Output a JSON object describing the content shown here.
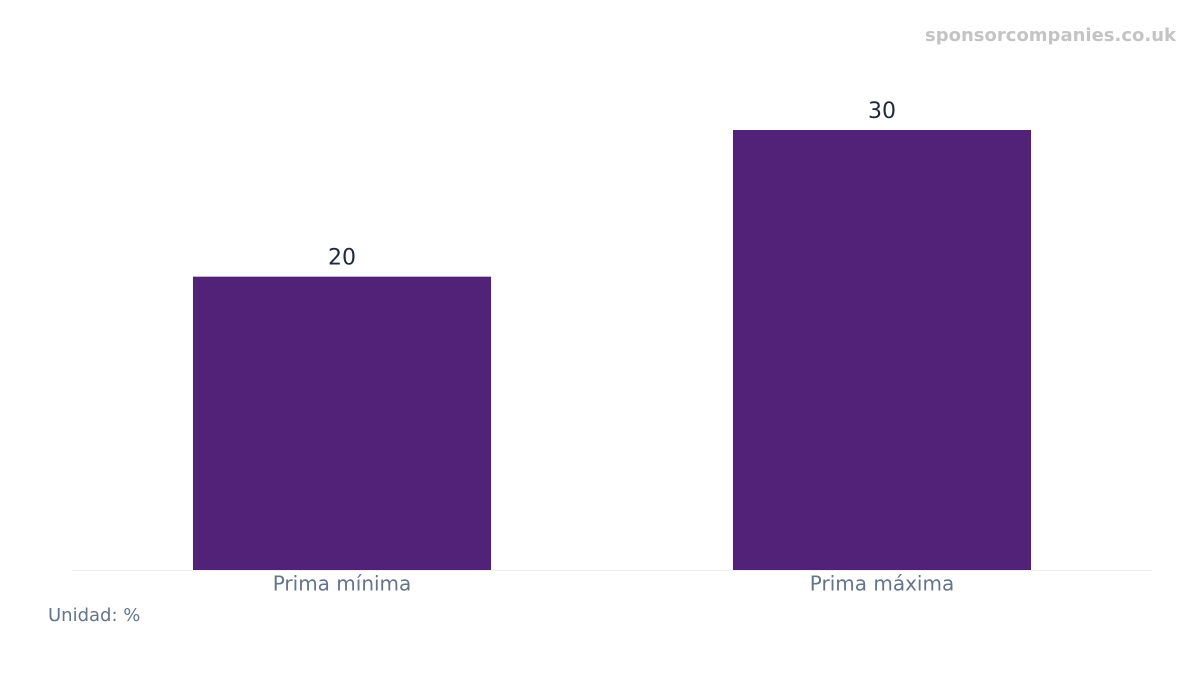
{
  "chart_data": {
    "type": "bar",
    "categories": [
      "Prima mínima",
      "Prima máxima"
    ],
    "values": [
      20,
      30
    ],
    "color": "#522178",
    "ylim": [
      0,
      30
    ],
    "unit_note": "Unidad: %",
    "watermark": "sponsorcompanies.co.uk"
  }
}
